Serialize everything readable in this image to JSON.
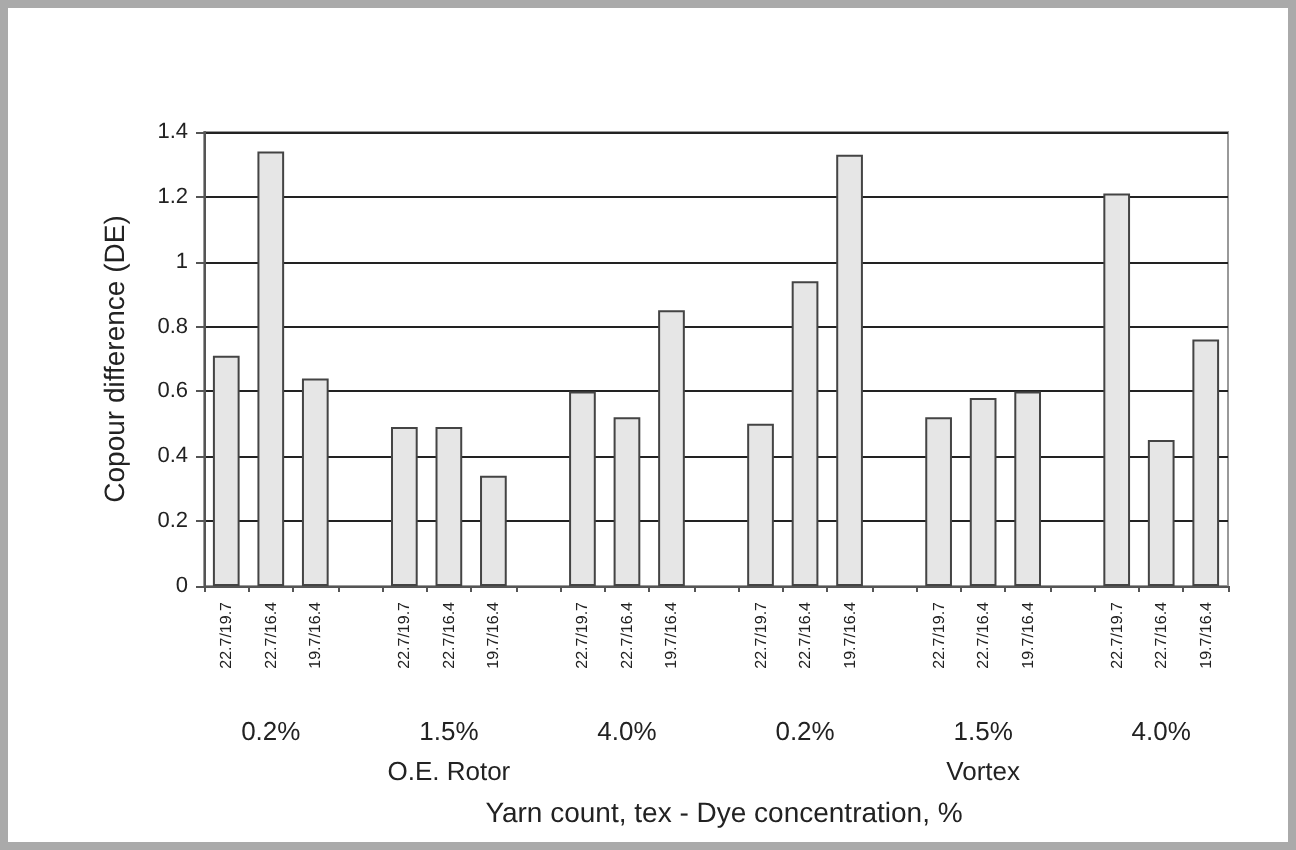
{
  "chart_data": {
    "type": "bar",
    "categories": [
      "22.7/19.7",
      "22.7/16.4",
      "19.7/16.4",
      null,
      "22.7/19.7",
      "22.7/16.4",
      "19.7/16.4",
      null,
      "22.7/19.7",
      "22.7/16.4",
      "19.7/16.4",
      null,
      "22.7/19.7",
      "22.7/16.4",
      "19.7/16.4",
      null,
      "22.7/19.7",
      "22.7/16.4",
      "19.7/16.4",
      null,
      "22.7/19.7",
      "22.7/16.4",
      "19.7/16.4"
    ],
    "values": [
      0.71,
      1.34,
      0.64,
      null,
      0.49,
      0.49,
      0.34,
      null,
      0.6,
      0.52,
      0.85,
      null,
      0.5,
      0.94,
      1.33,
      null,
      0.52,
      0.58,
      0.6,
      null,
      1.21,
      0.45,
      0.76
    ],
    "color": "#e6e6e6",
    "xlabel": "Yarn count, tex - Dye concentration, %",
    "ylabel": "Copour difference (DE)",
    "ylim": [
      0,
      1.4
    ],
    "yticks": [
      0,
      0.2,
      0.4,
      0.6,
      0.8,
      1,
      1.2,
      1.4
    ],
    "annotations": [
      "0.2%",
      "1.5%",
      "4.0%",
      "0.2%",
      "1.5%",
      "4.0%",
      "O.E. Rotor",
      "Vortex"
    ],
    "grid": "y"
  }
}
